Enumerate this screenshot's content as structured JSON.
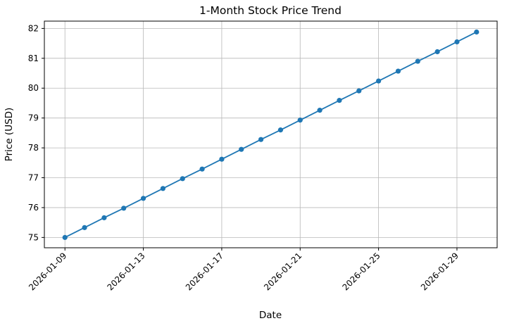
{
  "figure": {
    "background": "#ffffff"
  },
  "chart_data": {
    "type": "line",
    "title": "1-Month Stock Price Trend",
    "xlabel": "Date",
    "ylabel": "Price (USD)",
    "x": [
      "2026-01-09",
      "2026-01-10",
      "2026-01-11",
      "2026-01-12",
      "2026-01-13",
      "2026-01-14",
      "2026-01-15",
      "2026-01-16",
      "2026-01-17",
      "2026-01-18",
      "2026-01-19",
      "2026-01-20",
      "2026-01-21",
      "2026-01-22",
      "2026-01-23",
      "2026-01-24",
      "2026-01-25",
      "2026-01-26",
      "2026-01-27",
      "2026-01-28",
      "2026-01-29",
      "2026-01-30"
    ],
    "values": [
      75.0,
      75.33,
      75.66,
      75.98,
      76.31,
      76.64,
      76.97,
      77.29,
      77.62,
      77.95,
      78.28,
      78.6,
      78.93,
      79.26,
      79.59,
      79.91,
      80.24,
      80.57,
      80.9,
      81.22,
      81.55,
      81.88
    ],
    "yticks": [
      75,
      76,
      77,
      78,
      79,
      80,
      81,
      82
    ],
    "xtick_indices": [
      0,
      4,
      8,
      12,
      16,
      20
    ],
    "xtick_rotation": 45,
    "ylim": [
      74.655,
      82.245
    ],
    "grid": true,
    "legend": "none",
    "line_color": "#1f77b4",
    "marker": "circle",
    "marker_color": "#1f77b4",
    "grid_color": "#b8b8b8",
    "spine_color": "#000000"
  }
}
